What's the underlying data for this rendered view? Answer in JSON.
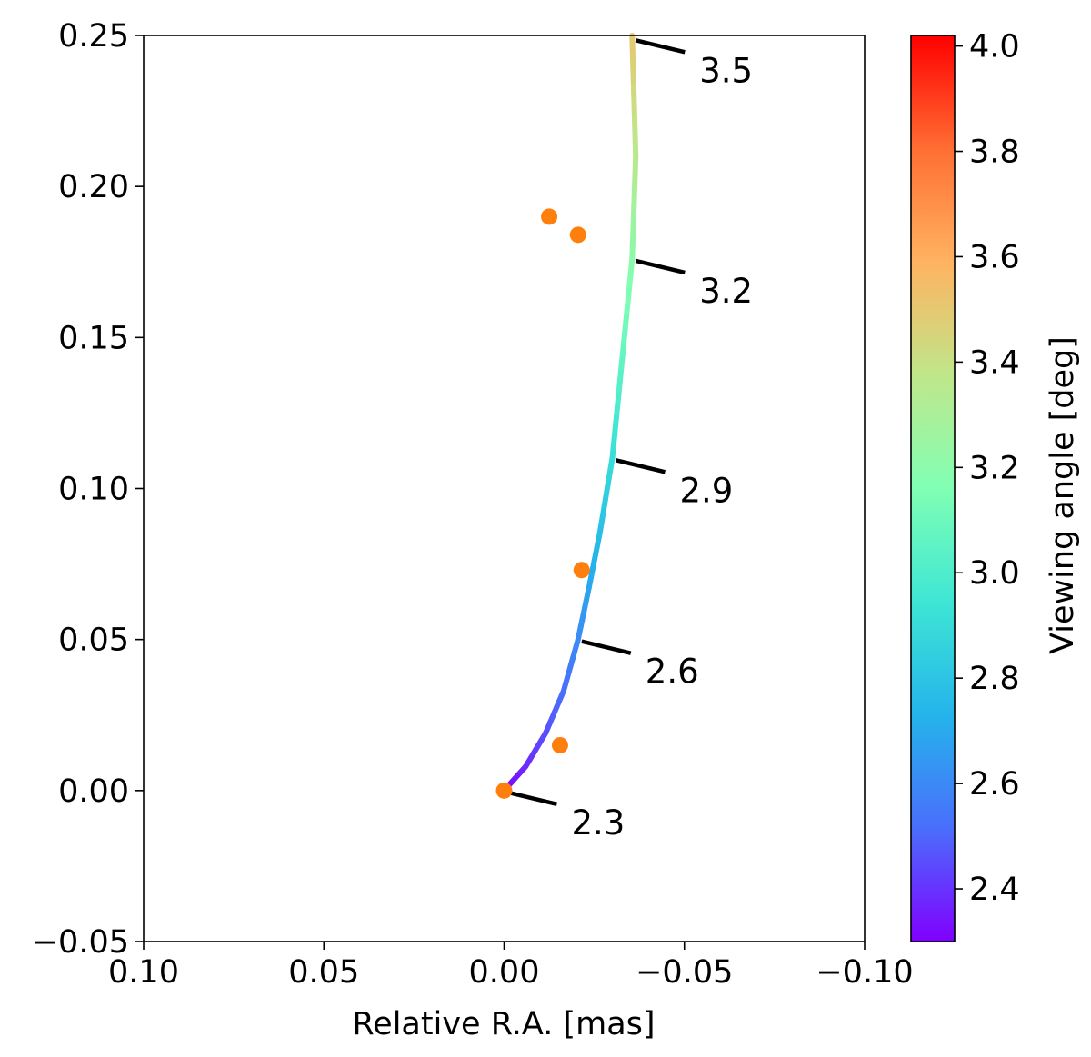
{
  "chart_data": {
    "type": "scatter",
    "title": "",
    "xlabel": "Relative R.A. [mas]",
    "ylabel": "",
    "xlim": [
      0.1,
      -0.1
    ],
    "ylim": [
      -0.05,
      0.25
    ],
    "grid": false,
    "x_ticks": [
      "0.10",
      "0.05",
      "0.00",
      "−0.05",
      "−0.10"
    ],
    "x_tick_values": [
      0.1,
      0.05,
      0.0,
      -0.05,
      -0.1
    ],
    "y_ticks": [
      "−0.05",
      "0.00",
      "0.05",
      "0.10",
      "0.15",
      "0.20",
      "0.25"
    ],
    "y_tick_values": [
      -0.05,
      0.0,
      0.05,
      0.1,
      0.15,
      0.2,
      0.25
    ],
    "colorbar": {
      "label": "Viewing angle [deg]",
      "colormap": "rainbow",
      "range": [
        2.3,
        4.02
      ],
      "ticks": [
        "2.4",
        "2.6",
        "2.8",
        "3.0",
        "3.2",
        "3.4",
        "3.6",
        "3.8",
        "4.0"
      ],
      "tick_values": [
        2.4,
        2.6,
        2.8,
        3.0,
        3.2,
        3.4,
        3.6,
        3.8,
        4.0
      ]
    },
    "track": {
      "colored_by": "viewing angle",
      "points": [
        {
          "x": 0.0,
          "y": 0.0,
          "angle": 2.3
        },
        {
          "x": -0.006,
          "y": 0.008,
          "angle": 2.38
        },
        {
          "x": -0.0115,
          "y": 0.019,
          "angle": 2.45
        },
        {
          "x": -0.0165,
          "y": 0.033,
          "angle": 2.52
        },
        {
          "x": -0.0205,
          "y": 0.05,
          "angle": 2.6
        },
        {
          "x": -0.0235,
          "y": 0.067,
          "angle": 2.68
        },
        {
          "x": -0.0265,
          "y": 0.085,
          "angle": 2.77
        },
        {
          "x": -0.03,
          "y": 0.11,
          "angle": 2.9
        },
        {
          "x": -0.0325,
          "y": 0.14,
          "angle": 3.05
        },
        {
          "x": -0.0355,
          "y": 0.176,
          "angle": 3.2
        },
        {
          "x": -0.0365,
          "y": 0.21,
          "angle": 3.35
        },
        {
          "x": -0.0355,
          "y": 0.25,
          "angle": 3.5
        }
      ]
    },
    "annotations": [
      {
        "label": "2.3",
        "x": 0.0,
        "y": 0.0
      },
      {
        "label": "2.6",
        "x": -0.0205,
        "y": 0.05
      },
      {
        "label": "2.9",
        "x": -0.03,
        "y": 0.11
      },
      {
        "label": "3.2",
        "x": -0.0355,
        "y": 0.176
      },
      {
        "label": "3.5",
        "x": -0.0355,
        "y": 0.249
      }
    ],
    "observed_points": {
      "color": "#ff7f0e",
      "points": [
        {
          "x": 0.0,
          "y": 0.0
        },
        {
          "x": -0.0155,
          "y": 0.015
        },
        {
          "x": -0.0215,
          "y": 0.073
        },
        {
          "x": -0.0205,
          "y": 0.184
        },
        {
          "x": -0.0125,
          "y": 0.19
        }
      ]
    }
  }
}
